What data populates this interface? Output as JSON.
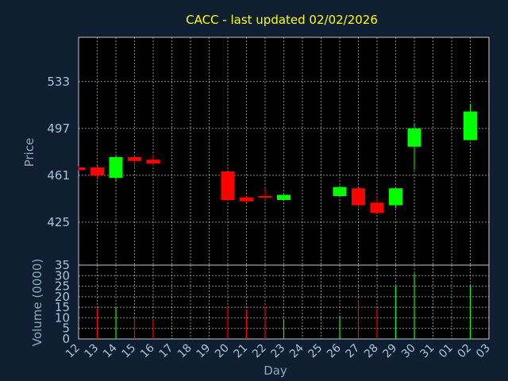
{
  "colors": {
    "background": "#0f1e30",
    "panel": "#000000",
    "title": "#ffff00",
    "axis_text": "#a9c3dc",
    "axis_label": "#8ea7bf",
    "grid": "#c8c8c8",
    "up": "#00ff00",
    "down": "#ff0000"
  },
  "chart_data": {
    "type": "candlestick",
    "title": "CACC - last updated 02/02/2026",
    "xlabel": "Day",
    "price_ylabel": "Price",
    "volume_ylabel": "Volume (0000)",
    "x_tick_labels": [
      "12",
      "13",
      "14",
      "15",
      "16",
      "17",
      "18",
      "19",
      "20",
      "21",
      "22",
      "23",
      "24",
      "25",
      "26",
      "27",
      "28",
      "29",
      "30",
      "31",
      "01",
      "02",
      "03"
    ],
    "price_ylim": [
      392,
      567
    ],
    "price_yticks": [
      425,
      461,
      497,
      533
    ],
    "volume_ylim": [
      0,
      35
    ],
    "volume_yticks": [
      0,
      5,
      10,
      15,
      20,
      25,
      30,
      35
    ],
    "grid": true,
    "candles": [
      {
        "day": "12",
        "open": 467.0,
        "high": 468.0,
        "low": 465.0,
        "close": 465.0,
        "volume": null
      },
      {
        "day": "13",
        "open": 467.0,
        "high": 468.0,
        "low": 458.0,
        "close": 461.0,
        "volume": 14.5
      },
      {
        "day": "14",
        "open": 459.0,
        "high": 477.0,
        "low": 456.0,
        "close": 475.0,
        "volume": 15.0
      },
      {
        "day": "15",
        "open": 475.0,
        "high": 477.0,
        "low": 466.0,
        "close": 472.0,
        "volume": 11.0
      },
      {
        "day": "16",
        "open": 473.0,
        "high": 477.0,
        "low": 468.0,
        "close": 470.0,
        "volume": 9.5
      },
      {
        "day": "20",
        "open": 464.0,
        "high": 464.0,
        "low": 441.0,
        "close": 442.0,
        "volume": 15.0
      },
      {
        "day": "21",
        "open": 444.0,
        "high": 445.0,
        "low": 440.0,
        "close": 441.0,
        "volume": 14.0
      },
      {
        "day": "22",
        "open": 445.0,
        "high": 452.0,
        "low": 441.0,
        "close": 444.0,
        "volume": 15.5
      },
      {
        "day": "23",
        "open": 442.0,
        "high": 446.0,
        "low": 442.0,
        "close": 446.0,
        "volume": 9.5
      },
      {
        "day": "26",
        "open": 445.0,
        "high": 453.0,
        "low": 444.0,
        "close": 452.0,
        "volume": 11.0
      },
      {
        "day": "27",
        "open": 451.0,
        "high": 451.0,
        "low": 436.0,
        "close": 438.0,
        "volume": 18.5
      },
      {
        "day": "28",
        "open": 440.0,
        "high": 445.0,
        "low": 432.0,
        "close": 432.0,
        "volume": 14.5
      },
      {
        "day": "29",
        "open": 438.0,
        "high": 451.0,
        "low": 436.0,
        "close": 451.0,
        "volume": 25.0
      },
      {
        "day": "30",
        "open": 483.0,
        "high": 501.0,
        "low": 465.0,
        "close": 497.0,
        "volume": 31.0
      },
      {
        "day": "02",
        "open": 488.0,
        "high": 516.0,
        "low": 488.0,
        "close": 510.0,
        "volume": 25.5
      }
    ]
  }
}
